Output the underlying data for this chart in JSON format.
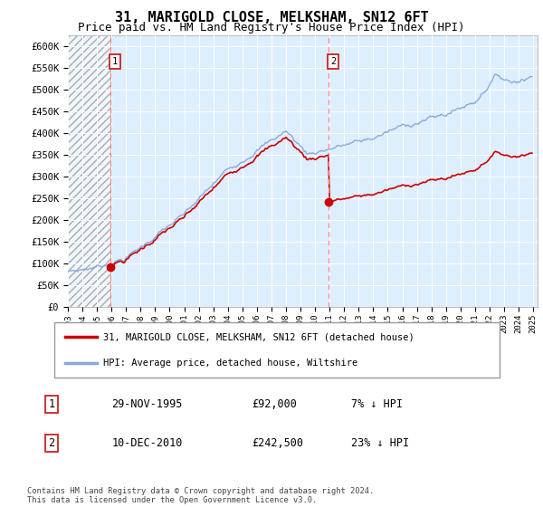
{
  "title": "31, MARIGOLD CLOSE, MELKSHAM, SN12 6FT",
  "subtitle": "Price paid vs. HM Land Registry's House Price Index (HPI)",
  "ylim": [
    0,
    625000
  ],
  "yticks": [
    0,
    50000,
    100000,
    150000,
    200000,
    250000,
    300000,
    350000,
    400000,
    450000,
    500000,
    550000,
    600000
  ],
  "ytick_labels": [
    "£0",
    "£50K",
    "£100K",
    "£150K",
    "£200K",
    "£250K",
    "£300K",
    "£350K",
    "£400K",
    "£450K",
    "£500K",
    "£550K",
    "£600K"
  ],
  "sale1_date": 1995.91,
  "sale1_price": 92000,
  "sale2_date": 2010.94,
  "sale2_price": 242500,
  "property_line_color": "#cc0000",
  "hpi_line_color": "#88aadd",
  "dashed_line_color": "#ff8888",
  "legend_property": "31, MARIGOLD CLOSE, MELKSHAM, SN12 6FT (detached house)",
  "legend_hpi": "HPI: Average price, detached house, Wiltshire",
  "table_row1": [
    "1",
    "29-NOV-1995",
    "£92,000",
    "7% ↓ HPI"
  ],
  "table_row2": [
    "2",
    "10-DEC-2010",
    "£242,500",
    "23% ↓ HPI"
  ],
  "footer": "Contains HM Land Registry data © Crown copyright and database right 2024.\nThis data is licensed under the Open Government Licence v3.0.",
  "bg_color": "#ddeeff",
  "hatch_bg": "#ccccdd",
  "title_fontsize": 11,
  "subtitle_fontsize": 9,
  "tick_fontsize": 7.5
}
